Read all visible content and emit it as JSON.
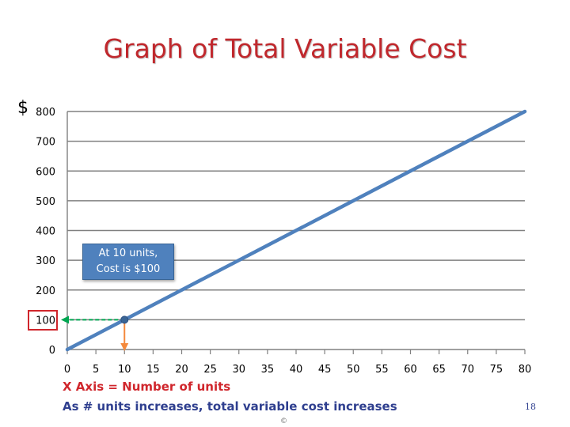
{
  "chart_data": {
    "type": "line",
    "title": "Graph of Total Variable Cost",
    "ylabel": "$",
    "xlabel": "X Axis = Number of units",
    "x": [
      0,
      80
    ],
    "series": [
      {
        "values": [
          0,
          800
        ]
      }
    ],
    "xlim": [
      0,
      80
    ],
    "ylim": [
      0,
      800
    ],
    "xticks": [
      0,
      5,
      10,
      15,
      20,
      25,
      30,
      35,
      40,
      45,
      50,
      55,
      60,
      65,
      70,
      75,
      80
    ],
    "yticks": [
      0,
      100,
      200,
      300,
      400,
      500,
      600,
      700,
      800
    ],
    "grid": true,
    "highlight_point": {
      "x": 10,
      "y": 100
    },
    "annotation": "At 10 units, Cost is $100",
    "annotation_lines": [
      "At 10 units,",
      "Cost is $100"
    ],
    "notes": [
      "X Axis = Number of units",
      "As # units increases, total variable cost increases"
    ],
    "colors": {
      "line": "#4f81bd",
      "grid": "#808080",
      "x_guide": "#00a651",
      "y_guide": "#f4893c",
      "highlight": "#d0262c",
      "title": "#c0282d"
    }
  },
  "footer": {
    "page_number": "18",
    "copyright": "©"
  }
}
